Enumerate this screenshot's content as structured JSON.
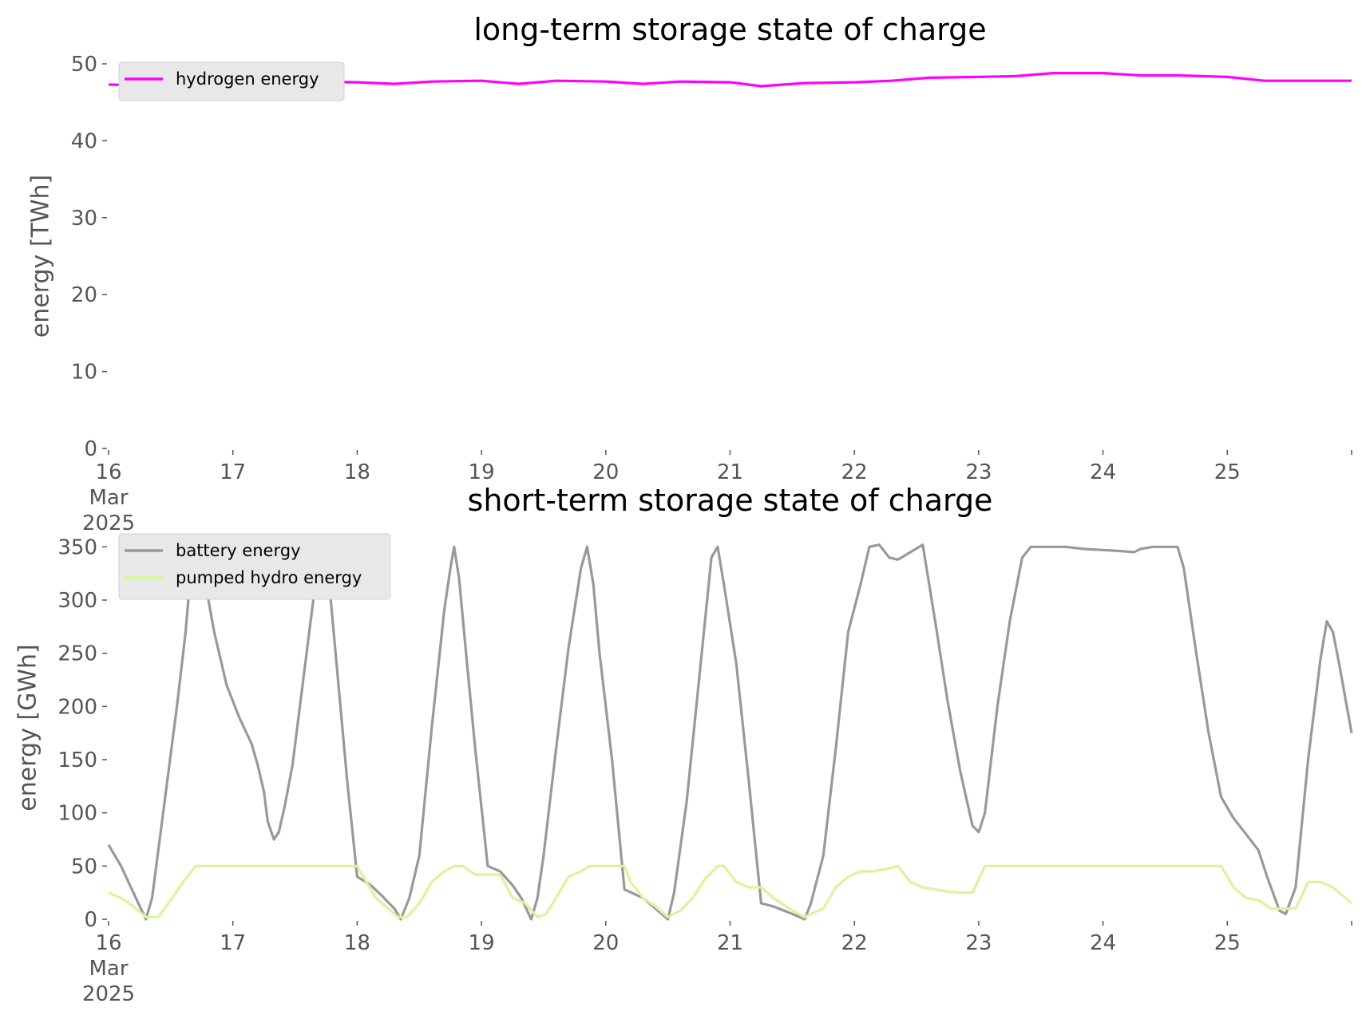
{
  "chart_data": [
    {
      "type": "line",
      "title": "long-term storage state of charge",
      "xlabel": "",
      "ylabel": "energy [TWh]",
      "ylim": [
        0,
        50
      ],
      "yticks": [
        0,
        10,
        20,
        30,
        40,
        50
      ],
      "xlim": [
        0,
        10
      ],
      "xticks": [
        {
          "x": 0,
          "lines": [
            "16",
            "Mar",
            "2025"
          ]
        },
        {
          "x": 1,
          "lines": [
            "17"
          ]
        },
        {
          "x": 2,
          "lines": [
            "18"
          ]
        },
        {
          "x": 3,
          "lines": [
            "19"
          ]
        },
        {
          "x": 4,
          "lines": [
            "20"
          ]
        },
        {
          "x": 5,
          "lines": [
            "21"
          ]
        },
        {
          "x": 6,
          "lines": [
            "22"
          ]
        },
        {
          "x": 7,
          "lines": [
            "23"
          ]
        },
        {
          "x": 8,
          "lines": [
            "24"
          ]
        },
        {
          "x": 9,
          "lines": [
            "25"
          ]
        }
      ],
      "grid": false,
      "legend_position": "upper-left",
      "series": [
        {
          "name": "hydrogen energy",
          "color": "#ff00ff",
          "points": [
            [
              0,
              47.3
            ],
            [
              0.3,
              47.2
            ],
            [
              0.6,
              47.5
            ],
            [
              1.0,
              47.6
            ],
            [
              1.3,
              47.6
            ],
            [
              1.6,
              47.7
            ],
            [
              2.0,
              47.6
            ],
            [
              2.3,
              47.4
            ],
            [
              2.6,
              47.7
            ],
            [
              3.0,
              47.8
            ],
            [
              3.3,
              47.4
            ],
            [
              3.6,
              47.8
            ],
            [
              4.0,
              47.7
            ],
            [
              4.3,
              47.4
            ],
            [
              4.6,
              47.7
            ],
            [
              5.0,
              47.6
            ],
            [
              5.25,
              47.1
            ],
            [
              5.6,
              47.5
            ],
            [
              6.0,
              47.6
            ],
            [
              6.3,
              47.8
            ],
            [
              6.6,
              48.2
            ],
            [
              7.0,
              48.3
            ],
            [
              7.3,
              48.4
            ],
            [
              7.6,
              48.8
            ],
            [
              8.0,
              48.8
            ],
            [
              8.3,
              48.5
            ],
            [
              8.6,
              48.5
            ],
            [
              9.0,
              48.3
            ],
            [
              9.3,
              47.8
            ],
            [
              9.6,
              47.8
            ],
            [
              10.0,
              47.8
            ]
          ]
        }
      ]
    },
    {
      "type": "line",
      "title": "short-term storage state of charge",
      "xlabel": "",
      "ylabel": "energy [GWh]",
      "ylim": [
        0,
        360
      ],
      "yticks": [
        0,
        50,
        100,
        150,
        200,
        250,
        300,
        350
      ],
      "xlim": [
        0,
        10
      ],
      "xticks": [
        {
          "x": 0,
          "lines": [
            "16",
            "Mar",
            "2025"
          ]
        },
        {
          "x": 1,
          "lines": [
            "17"
          ]
        },
        {
          "x": 2,
          "lines": [
            "18"
          ]
        },
        {
          "x": 3,
          "lines": [
            "19"
          ]
        },
        {
          "x": 4,
          "lines": [
            "20"
          ]
        },
        {
          "x": 5,
          "lines": [
            "21"
          ]
        },
        {
          "x": 6,
          "lines": [
            "22"
          ]
        },
        {
          "x": 7,
          "lines": [
            "23"
          ]
        },
        {
          "x": 8,
          "lines": [
            "24"
          ]
        },
        {
          "x": 9,
          "lines": [
            "25"
          ]
        }
      ],
      "grid": false,
      "legend_position": "upper-left",
      "series": [
        {
          "name": "battery energy",
          "color": "#999999",
          "points": [
            [
              0,
              70
            ],
            [
              0.1,
              50
            ],
            [
              0.2,
              25
            ],
            [
              0.3,
              0
            ],
            [
              0.35,
              20
            ],
            [
              0.45,
              110
            ],
            [
              0.55,
              200
            ],
            [
              0.62,
              270
            ],
            [
              0.67,
              340
            ],
            [
              0.72,
              345
            ],
            [
              0.78,
              315
            ],
            [
              0.85,
              270
            ],
            [
              0.95,
              220
            ],
            [
              1.05,
              190
            ],
            [
              1.15,
              165
            ],
            [
              1.2,
              145
            ],
            [
              1.25,
              120
            ],
            [
              1.28,
              92
            ],
            [
              1.33,
              75
            ],
            [
              1.37,
              82
            ],
            [
              1.42,
              108
            ],
            [
              1.48,
              145
            ],
            [
              1.55,
              210
            ],
            [
              1.62,
              275
            ],
            [
              1.68,
              330
            ],
            [
              1.72,
              350
            ],
            [
              1.78,
              310
            ],
            [
              1.85,
              220
            ],
            [
              1.92,
              130
            ],
            [
              2.0,
              40
            ],
            [
              2.1,
              33
            ],
            [
              2.2,
              22
            ],
            [
              2.3,
              10
            ],
            [
              2.35,
              0
            ],
            [
              2.42,
              20
            ],
            [
              2.5,
              60
            ],
            [
              2.6,
              180
            ],
            [
              2.7,
              290
            ],
            [
              2.75,
              330
            ],
            [
              2.78,
              350
            ],
            [
              2.82,
              320
            ],
            [
              2.88,
              245
            ],
            [
              2.95,
              160
            ],
            [
              3.05,
              50
            ],
            [
              3.15,
              45
            ],
            [
              3.25,
              32
            ],
            [
              3.32,
              20
            ],
            [
              3.4,
              0
            ],
            [
              3.45,
              20
            ],
            [
              3.5,
              60
            ],
            [
              3.6,
              160
            ],
            [
              3.7,
              255
            ],
            [
              3.8,
              330
            ],
            [
              3.85,
              350
            ],
            [
              3.9,
              315
            ],
            [
              3.95,
              250
            ],
            [
              4.05,
              150
            ],
            [
              4.15,
              28
            ],
            [
              4.3,
              20
            ],
            [
              4.4,
              10
            ],
            [
              4.5,
              0
            ],
            [
              4.55,
              25
            ],
            [
              4.65,
              110
            ],
            [
              4.75,
              225
            ],
            [
              4.85,
              340
            ],
            [
              4.9,
              350
            ],
            [
              4.95,
              315
            ],
            [
              5.05,
              240
            ],
            [
              5.15,
              130
            ],
            [
              5.25,
              15
            ],
            [
              5.35,
              12
            ],
            [
              5.5,
              5
            ],
            [
              5.6,
              0
            ],
            [
              5.65,
              15
            ],
            [
              5.75,
              60
            ],
            [
              5.85,
              160
            ],
            [
              5.95,
              270
            ],
            [
              6.05,
              315
            ],
            [
              6.12,
              350
            ],
            [
              6.2,
              352
            ],
            [
              6.28,
              340
            ],
            [
              6.35,
              338
            ],
            [
              6.45,
              345
            ],
            [
              6.55,
              352
            ],
            [
              6.65,
              280
            ],
            [
              6.75,
              205
            ],
            [
              6.85,
              140
            ],
            [
              6.95,
              88
            ],
            [
              7.0,
              82
            ],
            [
              7.05,
              100
            ],
            [
              7.15,
              200
            ],
            [
              7.25,
              280
            ],
            [
              7.35,
              340
            ],
            [
              7.42,
              350
            ],
            [
              7.55,
              350
            ],
            [
              7.7,
              350
            ],
            [
              7.85,
              348
            ],
            [
              8.0,
              347
            ],
            [
              8.15,
              346
            ],
            [
              8.25,
              345
            ],
            [
              8.3,
              348
            ],
            [
              8.4,
              350
            ],
            [
              8.5,
              350
            ],
            [
              8.6,
              350
            ],
            [
              8.65,
              330
            ],
            [
              8.75,
              250
            ],
            [
              8.85,
              175
            ],
            [
              8.95,
              115
            ],
            [
              9.05,
              95
            ],
            [
              9.15,
              80
            ],
            [
              9.25,
              65
            ],
            [
              9.32,
              40
            ],
            [
              9.42,
              8
            ],
            [
              9.47,
              5
            ],
            [
              9.55,
              30
            ],
            [
              9.65,
              150
            ],
            [
              9.75,
              245
            ],
            [
              9.8,
              280
            ],
            [
              9.85,
              270
            ],
            [
              9.9,
              240
            ],
            [
              10.0,
              175
            ]
          ]
        },
        {
          "name": "pumped hydro energy",
          "color": "#d9f59b",
          "points": [
            [
              0,
              25
            ],
            [
              0.1,
              20
            ],
            [
              0.2,
              12
            ],
            [
              0.3,
              2
            ],
            [
              0.4,
              2
            ],
            [
              0.5,
              18
            ],
            [
              0.6,
              35
            ],
            [
              0.7,
              50
            ],
            [
              1.0,
              50
            ],
            [
              1.3,
              50
            ],
            [
              1.6,
              50
            ],
            [
              1.9,
              50
            ],
            [
              2.0,
              50
            ],
            [
              2.05,
              40
            ],
            [
              2.15,
              20
            ],
            [
              2.25,
              10
            ],
            [
              2.33,
              2
            ],
            [
              2.4,
              2
            ],
            [
              2.5,
              15
            ],
            [
              2.6,
              35
            ],
            [
              2.7,
              45
            ],
            [
              2.78,
              50
            ],
            [
              2.85,
              50
            ],
            [
              2.95,
              42
            ],
            [
              3.05,
              42
            ],
            [
              3.15,
              42
            ],
            [
              3.25,
              20
            ],
            [
              3.35,
              15
            ],
            [
              3.45,
              2
            ],
            [
              3.52,
              5
            ],
            [
              3.6,
              20
            ],
            [
              3.7,
              40
            ],
            [
              3.8,
              45
            ],
            [
              3.87,
              50
            ],
            [
              4.0,
              50
            ],
            [
              4.1,
              50
            ],
            [
              4.15,
              50
            ],
            [
              4.2,
              35
            ],
            [
              4.3,
              20
            ],
            [
              4.4,
              12
            ],
            [
              4.5,
              2
            ],
            [
              4.6,
              8
            ],
            [
              4.7,
              20
            ],
            [
              4.8,
              38
            ],
            [
              4.9,
              50
            ],
            [
              4.95,
              50
            ],
            [
              5.05,
              35
            ],
            [
              5.15,
              30
            ],
            [
              5.25,
              30
            ],
            [
              5.35,
              20
            ],
            [
              5.45,
              12
            ],
            [
              5.55,
              5
            ],
            [
              5.6,
              2
            ],
            [
              5.65,
              5
            ],
            [
              5.75,
              10
            ],
            [
              5.85,
              30
            ],
            [
              5.95,
              40
            ],
            [
              6.05,
              45
            ],
            [
              6.15,
              45
            ],
            [
              6.25,
              47
            ],
            [
              6.35,
              50
            ],
            [
              6.45,
              35
            ],
            [
              6.55,
              30
            ],
            [
              6.65,
              28
            ],
            [
              6.75,
              26
            ],
            [
              6.85,
              25
            ],
            [
              6.95,
              25
            ],
            [
              7.05,
              50
            ],
            [
              7.2,
              50
            ],
            [
              7.5,
              50
            ],
            [
              7.8,
              50
            ],
            [
              8.1,
              50
            ],
            [
              8.4,
              50
            ],
            [
              8.7,
              50
            ],
            [
              8.95,
              50
            ],
            [
              9.05,
              30
            ],
            [
              9.15,
              20
            ],
            [
              9.25,
              18
            ],
            [
              9.35,
              10
            ],
            [
              9.45,
              10
            ],
            [
              9.55,
              10
            ],
            [
              9.65,
              35
            ],
            [
              9.75,
              35
            ],
            [
              9.85,
              30
            ],
            [
              9.95,
              20
            ],
            [
              10.0,
              15
            ]
          ]
        }
      ]
    }
  ]
}
